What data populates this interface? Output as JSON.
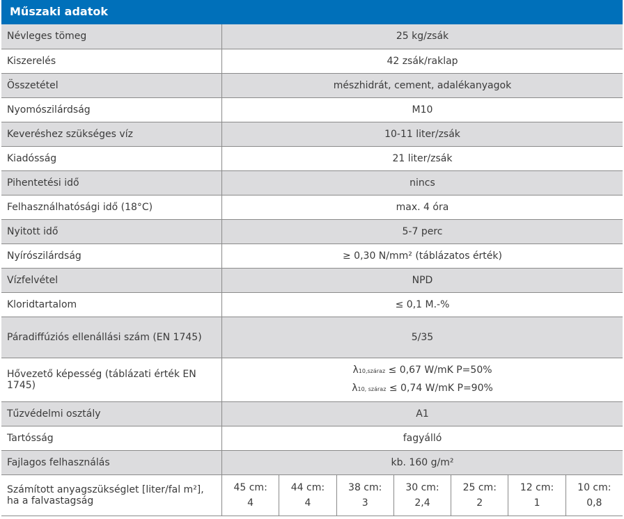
{
  "title": "Műszaki adatok",
  "rows": [
    {
      "label": "Névleges tömeg",
      "value": "25 kg/zsák"
    },
    {
      "label": "Kiszerelés",
      "value": "42 zsák/raklap"
    },
    {
      "label": "Összetétel",
      "value": "mészhidrát, cement, adalékanyagok"
    },
    {
      "label": "Nyomószilárdság",
      "value": "M10"
    },
    {
      "label": "Keveréshez szükséges víz",
      "value": "10-11 liter/zsák"
    },
    {
      "label": "Kiadósság",
      "value": "21 liter/zsák"
    },
    {
      "label": "Pihentetési idő",
      "value": "nincs"
    },
    {
      "label": "Felhasználhatósági idő (18°C)",
      "value": "max. 4 óra"
    },
    {
      "label": "Nyitott idő",
      "value": "5-7 perc"
    },
    {
      "label": "Nyírószilárdság",
      "value": "≥ 0,30 N/mm² (táblázatos érték)"
    },
    {
      "label": "Vízfelvétel",
      "value": "NPD"
    },
    {
      "label": "Kloridtartalom",
      "value": "≤ 0,1 M.-%"
    },
    {
      "label": "Páradiffúziós ellenállási szám (EN 1745)",
      "value": "5/35"
    }
  ],
  "thermal": {
    "label": "Hővezető képesség (táblázati érték EN 1745)",
    "line1": {
      "symbol": "λ",
      "sub": "10,száraz",
      "text": " ≤ 0,67 W/mK P=50%"
    },
    "line2": {
      "symbol": "λ",
      "sub": "10, száraz",
      "text": " ≤ 0,74 W/mK P=90%"
    }
  },
  "rows2": [
    {
      "label": "Tűzvédelmi osztály",
      "value": "A1"
    },
    {
      "label": "Tartósság",
      "value": "fagyálló"
    },
    {
      "label": "Fajlagos felhasználás",
      "value": "kb. 160 g/m²"
    }
  ],
  "requirement": {
    "label": "Számított anyagszükséglet [liter/fal m²], ha a falvastagság",
    "cells": [
      {
        "thickness": "45 cm:",
        "value": "4"
      },
      {
        "thickness": "44 cm:",
        "value": "4"
      },
      {
        "thickness": "38 cm:",
        "value": "3"
      },
      {
        "thickness": "30 cm:",
        "value": "2,4"
      },
      {
        "thickness": "25 cm:",
        "value": "2"
      },
      {
        "thickness": "12 cm:",
        "value": "1"
      },
      {
        "thickness": "10 cm:",
        "value": "0,8"
      }
    ]
  },
  "colors": {
    "header": "#0070ba",
    "stripe": "#dcdcde",
    "border": "#8a8a8a"
  }
}
